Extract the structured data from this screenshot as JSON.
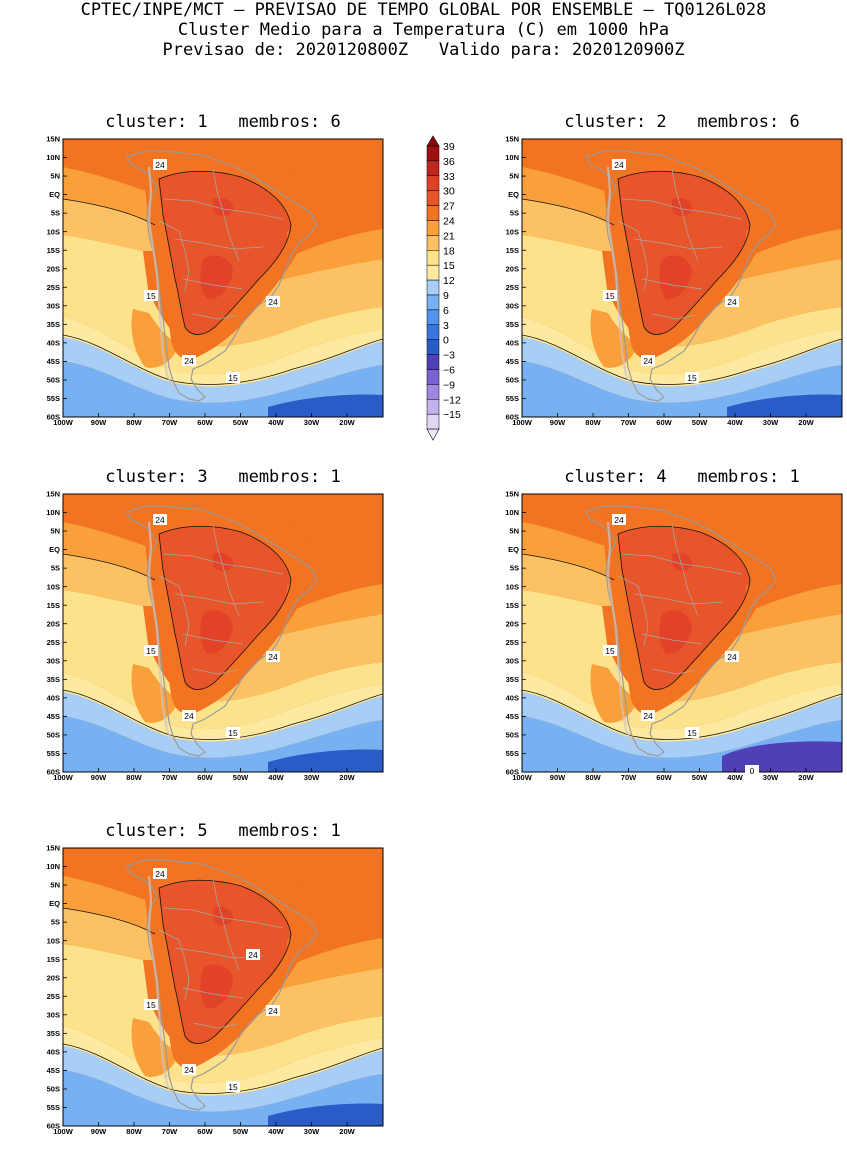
{
  "header": {
    "line1": "CPTEC/INPE/MCT — PREVISAO DE TEMPO GLOBAL POR ENSEMBLE — TQ0126L028",
    "line2": "Cluster Medio para a Temperatura (C) em 1000 hPa",
    "line3": "Previsao de: 2020120800Z   Valido para: 2020120900Z"
  },
  "axes": {
    "lat_labels": [
      "15N",
      "10N",
      "5N",
      "EQ",
      "5S",
      "10S",
      "15S",
      "20S",
      "25S",
      "30S",
      "35S",
      "40S",
      "45S",
      "50S",
      "55S",
      "60S"
    ],
    "lon_labels": [
      "100W",
      "90W",
      "80W",
      "70W",
      "60W",
      "50W",
      "40W",
      "30W",
      "20W"
    ]
  },
  "colorbar": {
    "labels": [
      "39",
      "36",
      "33",
      "30",
      "27",
      "24",
      "21",
      "18",
      "15",
      "12",
      "9",
      "6",
      "3",
      "0",
      "−3",
      "−6",
      "−9",
      "−12",
      "−15"
    ],
    "colors": [
      "#a01010",
      "#c0251e",
      "#e04028",
      "#e8552a",
      "#f27322",
      "#f9a03a",
      "#fbc162",
      "#fde28c",
      "#fdeaa0",
      "#a6cef7",
      "#78b1f2",
      "#5393ec",
      "#3a76de",
      "#2a5cc8",
      "#5040b8",
      "#7a62d0",
      "#a088e0",
      "#c2b2ec",
      "#e2d8f6"
    ],
    "arrow_top": "#8a0d0d",
    "arrow_bottom": "#efe8fa"
  },
  "panels": [
    {
      "title": "cluster: 1   membros: 6",
      "contour_labels": [
        "24",
        "15",
        "24",
        "24",
        "15"
      ]
    },
    {
      "title": "cluster: 2   membros: 6",
      "contour_labels": [
        "24",
        "15",
        "24",
        "24",
        "15"
      ]
    },
    {
      "title": "cluster: 3   membros: 1",
      "contour_labels": [
        "24",
        "15",
        "24",
        "24",
        "15"
      ]
    },
    {
      "title": "cluster: 4   membros: 1",
      "contour_labels": [
        "24",
        "15",
        "24",
        "24",
        "15",
        "0"
      ]
    },
    {
      "title": "cluster: 5   membros: 1",
      "contour_labels": [
        "24",
        "15",
        "24",
        "24",
        "24",
        "15"
      ]
    }
  ]
}
